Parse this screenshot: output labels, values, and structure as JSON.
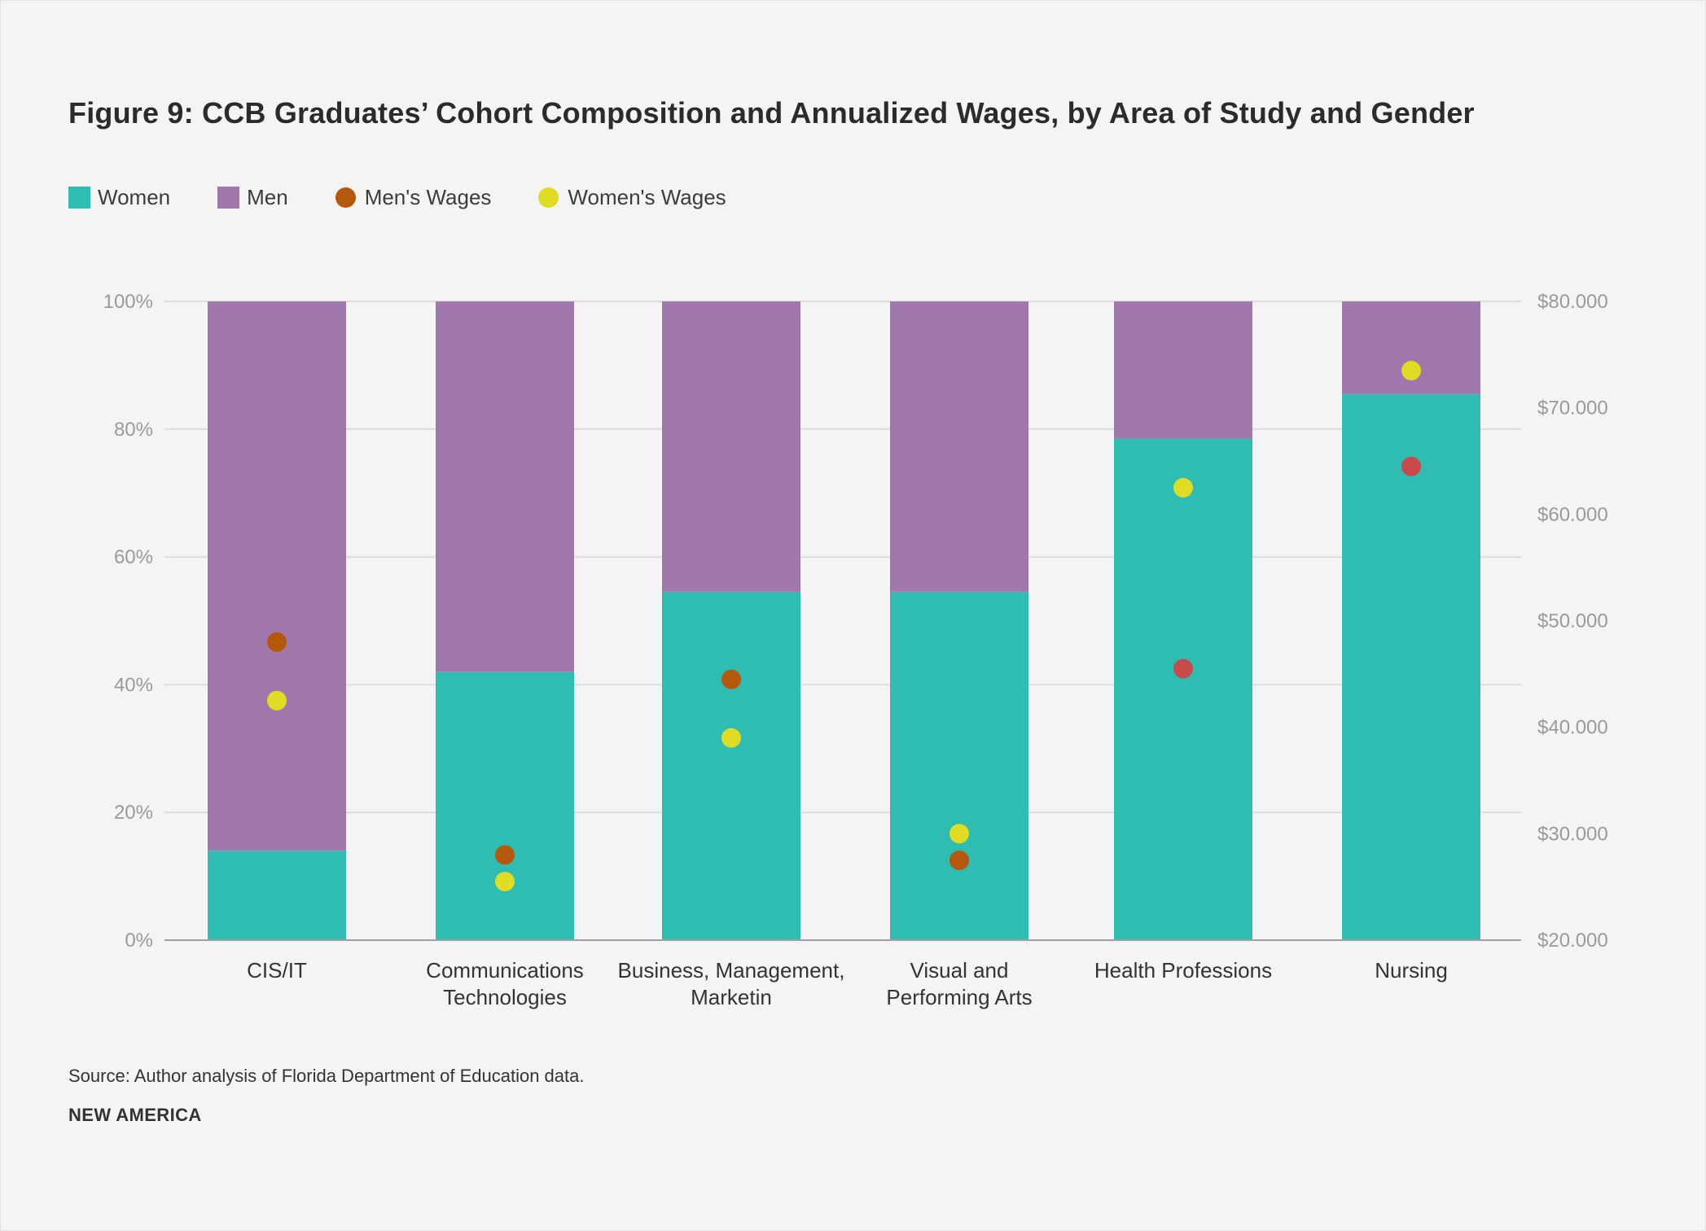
{
  "title": "Figure 9: CCB Graduates’ Cohort Composition and Annualized Wages, by Area of Study and Gender",
  "legend": {
    "women": "Women",
    "men": "Men",
    "mens_wages": "Men's Wages",
    "womens_wages": "Women's Wages"
  },
  "colors": {
    "women": "#2fbcb3",
    "men": "#a078ae",
    "mens_wages": "#b5580c",
    "mens_wages_alt": "#c84a4a",
    "womens_wages": "#e0dc24",
    "grid": "#dcdcdc",
    "axis": "#a0a0a0"
  },
  "source": "Source: Author analysis of Florida Department of Education data.",
  "brand": "NEW AMERICA",
  "chart_data": {
    "type": "bar",
    "stacked": true,
    "categories": [
      [
        "CIS/IT"
      ],
      [
        "Communications",
        "Technologies"
      ],
      [
        "Business, Management,",
        "Marketin"
      ],
      [
        "Visual and",
        "Performing Arts"
      ],
      [
        "Health Professions"
      ],
      [
        "Nursing"
      ]
    ],
    "series": [
      {
        "name": "Women",
        "axis": "left",
        "values": [
          14,
          42,
          54.5,
          54.5,
          78.5,
          85.5
        ]
      },
      {
        "name": "Men",
        "axis": "left",
        "values": [
          86,
          58,
          45.5,
          45.5,
          21.5,
          14.5
        ]
      },
      {
        "name": "Men's Wages",
        "axis": "right",
        "kind": "dot",
        "values": [
          48000,
          28000,
          44500,
          27500,
          45500,
          64500
        ]
      },
      {
        "name": "Women's Wages",
        "axis": "right",
        "kind": "dot",
        "values": [
          42500,
          25500,
          39000,
          30000,
          62500,
          73500
        ]
      }
    ],
    "left_axis": {
      "ticks": [
        "0%",
        "20%",
        "40%",
        "60%",
        "80%",
        "100%"
      ],
      "range": [
        0,
        100
      ]
    },
    "right_axis": {
      "ticks": [
        "$20.000",
        "$30.000",
        "$40.000",
        "$50.000",
        "$60.000",
        "$70.000",
        "$80.000"
      ],
      "range": [
        20000,
        80000
      ]
    },
    "grid": true,
    "legend_position": "top-left"
  }
}
